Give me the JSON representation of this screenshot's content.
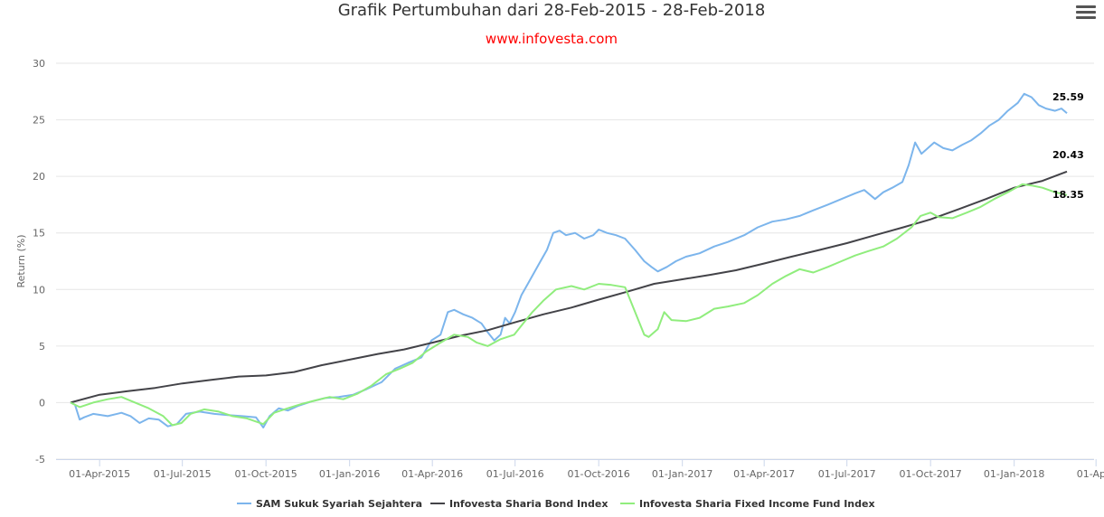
{
  "chart_data": {
    "type": "line",
    "title": "Grafik Pertumbuhan dari 28-Feb-2015 - 28-Feb-2018",
    "subtitle": "www.infovesta.com",
    "xlabel": "",
    "ylabel": "Return (%)",
    "x_range": [
      "2015-02-28",
      "2018-02-28"
    ],
    "ylim": [
      -5,
      30
    ],
    "y_ticks": [
      30,
      25,
      20,
      15,
      10,
      5,
      0,
      -5
    ],
    "x_tick_labels": [
      "01-Apr-2015",
      "01-Jul-2015",
      "01-Oct-2015",
      "01-Jan-2016",
      "01-Apr-2016",
      "01-Jul-2016",
      "01-Oct-2016",
      "01-Jan-2017",
      "01-Apr-2017",
      "01-Jul-2017",
      "01-Oct-2017",
      "01-Jan-2018",
      "01-Ap..."
    ],
    "x_tick_dates": [
      "2015-04-01",
      "2015-07-01",
      "2015-10-01",
      "2016-01-01",
      "2016-04-01",
      "2016-07-01",
      "2016-10-01",
      "2017-01-01",
      "2017-04-01",
      "2017-07-01",
      "2017-10-01",
      "2018-01-01",
      "2018-04-01"
    ],
    "grid": "horizontal",
    "legend_position": "bottom",
    "colors": {
      "subtitle": "#ff0000",
      "grid": "#e6e6e6",
      "axis": "#ccd6eb"
    },
    "series": [
      {
        "name": "SAM Sukuk Syariah Sejahtera",
        "color": "#7cb5ec",
        "end_label": "25.59",
        "points": [
          [
            "2015-02-28",
            0.0
          ],
          [
            "2015-03-05",
            -0.2
          ],
          [
            "2015-03-10",
            -1.5
          ],
          [
            "2015-03-15",
            -1.3
          ],
          [
            "2015-03-25",
            -1.0
          ],
          [
            "2015-04-10",
            -1.2
          ],
          [
            "2015-04-25",
            -0.9
          ],
          [
            "2015-05-05",
            -1.2
          ],
          [
            "2015-05-15",
            -1.8
          ],
          [
            "2015-05-25",
            -1.4
          ],
          [
            "2015-06-05",
            -1.5
          ],
          [
            "2015-06-15",
            -2.1
          ],
          [
            "2015-06-25",
            -1.9
          ],
          [
            "2015-07-05",
            -1.0
          ],
          [
            "2015-07-20",
            -0.8
          ],
          [
            "2015-08-05",
            -1.0
          ],
          [
            "2015-08-20",
            -1.1
          ],
          [
            "2015-09-05",
            -1.2
          ],
          [
            "2015-09-20",
            -1.3
          ],
          [
            "2015-09-28",
            -2.2
          ],
          [
            "2015-10-05",
            -1.2
          ],
          [
            "2015-10-15",
            -0.5
          ],
          [
            "2015-10-25",
            -0.7
          ],
          [
            "2015-11-05",
            -0.3
          ],
          [
            "2015-11-20",
            0.1
          ],
          [
            "2015-12-05",
            0.4
          ],
          [
            "2015-12-20",
            0.5
          ],
          [
            "2016-01-05",
            0.7
          ],
          [
            "2016-01-20",
            1.2
          ],
          [
            "2016-02-05",
            1.8
          ],
          [
            "2016-02-20",
            3.0
          ],
          [
            "2016-03-05",
            3.5
          ],
          [
            "2016-03-20",
            4.0
          ],
          [
            "2016-03-31",
            5.5
          ],
          [
            "2016-04-10",
            6.0
          ],
          [
            "2016-04-18",
            8.0
          ],
          [
            "2016-04-25",
            8.2
          ],
          [
            "2016-05-05",
            7.8
          ],
          [
            "2016-05-15",
            7.5
          ],
          [
            "2016-05-25",
            7.0
          ],
          [
            "2016-06-01",
            6.2
          ],
          [
            "2016-06-08",
            5.5
          ],
          [
            "2016-06-15",
            6.0
          ],
          [
            "2016-06-20",
            7.5
          ],
          [
            "2016-06-25",
            7.0
          ],
          [
            "2016-07-01",
            8.0
          ],
          [
            "2016-07-08",
            9.5
          ],
          [
            "2016-07-15",
            10.5
          ],
          [
            "2016-07-22",
            11.5
          ],
          [
            "2016-07-29",
            12.5
          ],
          [
            "2016-08-05",
            13.5
          ],
          [
            "2016-08-12",
            15.0
          ],
          [
            "2016-08-19",
            15.2
          ],
          [
            "2016-08-26",
            14.8
          ],
          [
            "2016-09-05",
            15.0
          ],
          [
            "2016-09-15",
            14.5
          ],
          [
            "2016-09-25",
            14.8
          ],
          [
            "2016-10-01",
            15.3
          ],
          [
            "2016-10-10",
            15.0
          ],
          [
            "2016-10-20",
            14.8
          ],
          [
            "2016-10-30",
            14.5
          ],
          [
            "2016-11-10",
            13.5
          ],
          [
            "2016-11-20",
            12.5
          ],
          [
            "2016-11-28",
            12.0
          ],
          [
            "2016-12-05",
            11.6
          ],
          [
            "2016-12-15",
            12.0
          ],
          [
            "2016-12-25",
            12.5
          ],
          [
            "2017-01-05",
            12.9
          ],
          [
            "2017-01-20",
            13.2
          ],
          [
            "2017-02-05",
            13.8
          ],
          [
            "2017-02-20",
            14.2
          ],
          [
            "2017-03-10",
            14.8
          ],
          [
            "2017-03-25",
            15.5
          ],
          [
            "2017-04-10",
            16.0
          ],
          [
            "2017-04-25",
            16.2
          ],
          [
            "2017-05-10",
            16.5
          ],
          [
            "2017-05-25",
            17.0
          ],
          [
            "2017-06-10",
            17.5
          ],
          [
            "2017-06-25",
            18.0
          ],
          [
            "2017-07-10",
            18.5
          ],
          [
            "2017-07-20",
            18.8
          ],
          [
            "2017-08-01",
            18.0
          ],
          [
            "2017-08-10",
            18.6
          ],
          [
            "2017-08-20",
            19.0
          ],
          [
            "2017-08-31",
            19.5
          ],
          [
            "2017-09-07",
            21.0
          ],
          [
            "2017-09-14",
            23.0
          ],
          [
            "2017-09-21",
            22.0
          ],
          [
            "2017-09-28",
            22.5
          ],
          [
            "2017-10-05",
            23.0
          ],
          [
            "2017-10-15",
            22.5
          ],
          [
            "2017-10-25",
            22.3
          ],
          [
            "2017-11-05",
            22.8
          ],
          [
            "2017-11-15",
            23.2
          ],
          [
            "2017-11-25",
            23.8
          ],
          [
            "2017-12-05",
            24.5
          ],
          [
            "2017-12-15",
            25.0
          ],
          [
            "2017-12-25",
            25.8
          ],
          [
            "2018-01-05",
            26.5
          ],
          [
            "2018-01-12",
            27.3
          ],
          [
            "2018-01-20",
            27.0
          ],
          [
            "2018-01-28",
            26.3
          ],
          [
            "2018-02-05",
            26.0
          ],
          [
            "2018-02-15",
            25.8
          ],
          [
            "2018-02-22",
            26.0
          ],
          [
            "2018-02-28",
            25.59
          ]
        ]
      },
      {
        "name": "Infovesta Sharia Bond Index",
        "color": "#434348",
        "end_label": "20.43",
        "points": [
          [
            "2015-02-28",
            0.0
          ],
          [
            "2015-04-01",
            0.7
          ],
          [
            "2015-05-01",
            1.0
          ],
          [
            "2015-06-01",
            1.3
          ],
          [
            "2015-07-01",
            1.7
          ],
          [
            "2015-08-01",
            2.0
          ],
          [
            "2015-09-01",
            2.3
          ],
          [
            "2015-10-01",
            2.4
          ],
          [
            "2015-11-01",
            2.7
          ],
          [
            "2015-12-01",
            3.3
          ],
          [
            "2016-01-01",
            3.8
          ],
          [
            "2016-02-01",
            4.3
          ],
          [
            "2016-03-01",
            4.7
          ],
          [
            "2016-04-01",
            5.3
          ],
          [
            "2016-05-01",
            5.9
          ],
          [
            "2016-06-01",
            6.4
          ],
          [
            "2016-07-01",
            7.1
          ],
          [
            "2016-08-01",
            7.8
          ],
          [
            "2016-09-01",
            8.4
          ],
          [
            "2016-10-01",
            9.1
          ],
          [
            "2016-11-01",
            9.8
          ],
          [
            "2016-12-01",
            10.5
          ],
          [
            "2017-01-01",
            10.9
          ],
          [
            "2017-02-01",
            11.3
          ],
          [
            "2017-03-01",
            11.7
          ],
          [
            "2017-04-01",
            12.3
          ],
          [
            "2017-05-01",
            12.9
          ],
          [
            "2017-06-01",
            13.5
          ],
          [
            "2017-07-01",
            14.1
          ],
          [
            "2017-08-01",
            14.8
          ],
          [
            "2017-09-01",
            15.5
          ],
          [
            "2017-10-01",
            16.2
          ],
          [
            "2017-11-01",
            17.1
          ],
          [
            "2017-12-01",
            18.0
          ],
          [
            "2018-01-01",
            19.0
          ],
          [
            "2018-02-01",
            19.6
          ],
          [
            "2018-02-28",
            20.43
          ]
        ]
      },
      {
        "name": "Infovesta Sharia Fixed Income Fund Index",
        "color": "#90ed7d",
        "end_label": "18.35",
        "points": [
          [
            "2015-02-28",
            0.0
          ],
          [
            "2015-03-10",
            -0.4
          ],
          [
            "2015-03-25",
            0.0
          ],
          [
            "2015-04-10",
            0.3
          ],
          [
            "2015-04-25",
            0.5
          ],
          [
            "2015-05-10",
            0.0
          ],
          [
            "2015-05-25",
            -0.5
          ],
          [
            "2015-06-10",
            -1.2
          ],
          [
            "2015-06-20",
            -2.0
          ],
          [
            "2015-06-30",
            -1.8
          ],
          [
            "2015-07-10",
            -1.0
          ],
          [
            "2015-07-25",
            -0.6
          ],
          [
            "2015-08-10",
            -0.8
          ],
          [
            "2015-08-25",
            -1.2
          ],
          [
            "2015-09-10",
            -1.4
          ],
          [
            "2015-09-28",
            -1.9
          ],
          [
            "2015-10-10",
            -0.9
          ],
          [
            "2015-10-25",
            -0.5
          ],
          [
            "2015-11-10",
            -0.1
          ],
          [
            "2015-11-25",
            0.2
          ],
          [
            "2015-12-10",
            0.5
          ],
          [
            "2015-12-25",
            0.3
          ],
          [
            "2016-01-10",
            0.8
          ],
          [
            "2016-01-25",
            1.5
          ],
          [
            "2016-02-10",
            2.5
          ],
          [
            "2016-02-25",
            3.0
          ],
          [
            "2016-03-10",
            3.5
          ],
          [
            "2016-03-25",
            4.5
          ],
          [
            "2016-04-10",
            5.3
          ],
          [
            "2016-04-25",
            6.0
          ],
          [
            "2016-05-10",
            5.8
          ],
          [
            "2016-05-20",
            5.3
          ],
          [
            "2016-06-01",
            5.0
          ],
          [
            "2016-06-15",
            5.6
          ],
          [
            "2016-06-30",
            6.0
          ],
          [
            "2016-07-10",
            7.0
          ],
          [
            "2016-07-20",
            8.0
          ],
          [
            "2016-08-01",
            9.0
          ],
          [
            "2016-08-15",
            10.0
          ],
          [
            "2016-09-01",
            10.3
          ],
          [
            "2016-09-15",
            10.0
          ],
          [
            "2016-10-01",
            10.5
          ],
          [
            "2016-10-15",
            10.4
          ],
          [
            "2016-10-30",
            10.2
          ],
          [
            "2016-11-10",
            8.0
          ],
          [
            "2016-11-20",
            6.0
          ],
          [
            "2016-11-25",
            5.8
          ],
          [
            "2016-12-05",
            6.5
          ],
          [
            "2016-12-12",
            8.0
          ],
          [
            "2016-12-20",
            7.3
          ],
          [
            "2017-01-05",
            7.2
          ],
          [
            "2017-01-20",
            7.5
          ],
          [
            "2017-02-05",
            8.3
          ],
          [
            "2017-02-20",
            8.5
          ],
          [
            "2017-03-10",
            8.8
          ],
          [
            "2017-03-25",
            9.5
          ],
          [
            "2017-04-10",
            10.5
          ],
          [
            "2017-04-25",
            11.2
          ],
          [
            "2017-05-10",
            11.8
          ],
          [
            "2017-05-25",
            11.5
          ],
          [
            "2017-06-10",
            12.0
          ],
          [
            "2017-06-25",
            12.5
          ],
          [
            "2017-07-10",
            13.0
          ],
          [
            "2017-07-25",
            13.4
          ],
          [
            "2017-08-10",
            13.8
          ],
          [
            "2017-08-25",
            14.5
          ],
          [
            "2017-09-10",
            15.5
          ],
          [
            "2017-09-20",
            16.5
          ],
          [
            "2017-10-01",
            16.8
          ],
          [
            "2017-10-10",
            16.4
          ],
          [
            "2017-10-25",
            16.3
          ],
          [
            "2017-11-10",
            16.8
          ],
          [
            "2017-11-25",
            17.3
          ],
          [
            "2017-12-10",
            18.0
          ],
          [
            "2017-12-25",
            18.6
          ],
          [
            "2018-01-10",
            19.3
          ],
          [
            "2018-01-20",
            19.2
          ],
          [
            "2018-02-01",
            19.0
          ],
          [
            "2018-02-15",
            18.6
          ],
          [
            "2018-02-28",
            18.35
          ]
        ]
      }
    ]
  }
}
